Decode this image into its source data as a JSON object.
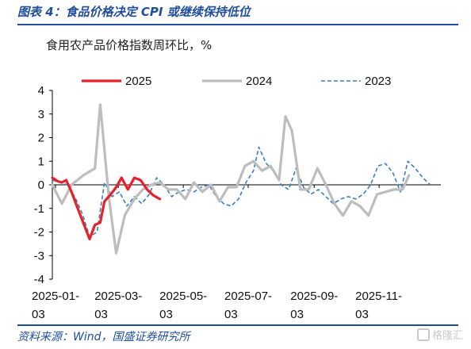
{
  "figure_title": "图表 4：食品价格决定 CPI 或继续保持低位",
  "source": "资料来源：Wind，国盛证券研究所",
  "watermark": "格隆汇",
  "chart_data": {
    "type": "line",
    "title": "食用农产品价格指数周环比，%",
    "xlabel": "",
    "ylabel": "",
    "ylim": [
      -4,
      4
    ],
    "yticks": [
      4,
      3,
      2,
      1,
      0,
      -1,
      -2,
      -3,
      -4
    ],
    "xlim": [
      "2024-12-31",
      "2025-12-31"
    ],
    "xticks": [
      {
        "date": "2025-01-03",
        "label": [
          "2025-01-",
          "03"
        ]
      },
      {
        "date": "2025-03-03",
        "label": [
          "2025-03-",
          "03"
        ]
      },
      {
        "date": "2025-05-03",
        "label": [
          "2025-05-",
          "03"
        ]
      },
      {
        "date": "2025-07-03",
        "label": [
          "2025-07-",
          "03"
        ]
      },
      {
        "date": "2025-09-03",
        "label": [
          "2025-09-",
          "03"
        ]
      },
      {
        "date": "2025-11-03",
        "label": [
          "2025-11-",
          "03"
        ]
      }
    ],
    "legend_position": "top",
    "series": [
      {
        "name": "2025",
        "color": "#e8202a",
        "style": "solid-thick",
        "points": [
          [
            "2024-12-31",
            0.3
          ],
          [
            "2025-01-05",
            0.15
          ],
          [
            "2025-01-09",
            0.1
          ],
          [
            "2025-01-13",
            0.2
          ],
          [
            "2025-01-18",
            -0.3
          ],
          [
            "2025-01-23",
            -0.9
          ],
          [
            "2025-01-29",
            -1.6
          ],
          [
            "2025-02-04",
            -2.3
          ],
          [
            "2025-02-09",
            -1.7
          ],
          [
            "2025-02-14",
            -1.6
          ],
          [
            "2025-02-18",
            -0.7
          ],
          [
            "2025-02-24",
            -0.4
          ],
          [
            "2025-03-01",
            -0.1
          ],
          [
            "2025-03-06",
            0.3
          ],
          [
            "2025-03-12",
            -0.2
          ],
          [
            "2025-03-18",
            0.3
          ],
          [
            "2025-03-24",
            0.2
          ],
          [
            "2025-03-30",
            -0.2
          ],
          [
            "2025-04-05",
            -0.45
          ],
          [
            "2025-04-11",
            -0.6
          ]
        ]
      },
      {
        "name": "2024",
        "color": "#bdbdbd",
        "style": "solid-thick",
        "points": [
          [
            "2024-12-31",
            0.0
          ],
          [
            "2025-01-09",
            -0.8
          ],
          [
            "2025-01-18",
            0.0
          ],
          [
            "2025-01-29",
            0.4
          ],
          [
            "2025-02-09",
            0.7
          ],
          [
            "2025-02-14",
            3.4
          ],
          [
            "2025-02-22",
            -0.5
          ],
          [
            "2025-03-01",
            -2.9
          ],
          [
            "2025-03-09",
            -1.3
          ],
          [
            "2025-03-18",
            -0.6
          ],
          [
            "2025-03-26",
            -0.2
          ],
          [
            "2025-04-03",
            0.0
          ],
          [
            "2025-04-11",
            0.1
          ],
          [
            "2025-04-19",
            -0.2
          ],
          [
            "2025-04-27",
            -0.2
          ],
          [
            "2025-05-05",
            -0.6
          ],
          [
            "2025-05-13",
            0.1
          ],
          [
            "2025-05-21",
            -0.3
          ],
          [
            "2025-05-29",
            0.0
          ],
          [
            "2025-06-06",
            -0.7
          ],
          [
            "2025-06-14",
            -0.1
          ],
          [
            "2025-06-22",
            -0.1
          ],
          [
            "2025-06-30",
            0.8
          ],
          [
            "2025-07-08",
            1.0
          ],
          [
            "2025-07-16",
            0.6
          ],
          [
            "2025-07-24",
            0.8
          ],
          [
            "2025-08-01",
            0.2
          ],
          [
            "2025-08-07",
            2.9
          ],
          [
            "2025-08-13",
            2.3
          ],
          [
            "2025-08-21",
            -0.2
          ],
          [
            "2025-08-29",
            -0.2
          ],
          [
            "2025-09-06",
            0.7
          ],
          [
            "2025-09-14",
            0.0
          ],
          [
            "2025-09-22",
            -0.8
          ],
          [
            "2025-09-30",
            -1.3
          ],
          [
            "2025-10-08",
            -0.7
          ],
          [
            "2025-10-16",
            -0.9
          ],
          [
            "2025-10-24",
            -1.3
          ],
          [
            "2025-11-01",
            -0.4
          ],
          [
            "2025-11-09",
            -0.3
          ],
          [
            "2025-11-17",
            -0.2
          ],
          [
            "2025-11-25",
            -0.2
          ],
          [
            "2025-12-01",
            0.4
          ]
        ]
      },
      {
        "name": "2023",
        "color": "#3a7ec0",
        "style": "dashed",
        "points": [
          [
            "2024-12-31",
            0.2
          ],
          [
            "2025-01-07",
            0.1
          ],
          [
            "2025-01-14",
            0.0
          ],
          [
            "2025-01-21",
            -0.5
          ],
          [
            "2025-01-28",
            -1.2
          ],
          [
            "2025-02-04",
            -2.2
          ],
          [
            "2025-02-11",
            -2.0
          ],
          [
            "2025-02-18",
            0.1
          ],
          [
            "2025-02-25",
            -0.5
          ],
          [
            "2025-03-04",
            -0.3
          ],
          [
            "2025-03-11",
            -0.9
          ],
          [
            "2025-03-18",
            -0.5
          ],
          [
            "2025-03-25",
            -0.8
          ],
          [
            "2025-04-01",
            -0.4
          ],
          [
            "2025-04-08",
            0.3
          ],
          [
            "2025-04-15",
            0.0
          ],
          [
            "2025-04-22",
            -0.5
          ],
          [
            "2025-04-29",
            -0.3
          ],
          [
            "2025-05-06",
            -0.2
          ],
          [
            "2025-05-13",
            -0.3
          ],
          [
            "2025-05-20",
            -0.1
          ],
          [
            "2025-05-27",
            0.0
          ],
          [
            "2025-06-03",
            -0.5
          ],
          [
            "2025-06-10",
            -0.8
          ],
          [
            "2025-06-17",
            -0.9
          ],
          [
            "2025-06-24",
            -0.6
          ],
          [
            "2025-07-01",
            0.1
          ],
          [
            "2025-07-08",
            0.6
          ],
          [
            "2025-07-13",
            1.6
          ],
          [
            "2025-07-20",
            0.9
          ],
          [
            "2025-07-27",
            0.6
          ],
          [
            "2025-08-03",
            0.0
          ],
          [
            "2025-08-10",
            -0.2
          ],
          [
            "2025-08-17",
            0.7
          ],
          [
            "2025-08-24",
            -0.1
          ],
          [
            "2025-08-31",
            -0.4
          ],
          [
            "2025-09-07",
            -0.2
          ],
          [
            "2025-09-14",
            -0.5
          ],
          [
            "2025-09-21",
            -0.8
          ],
          [
            "2025-09-28",
            -0.6
          ],
          [
            "2025-10-05",
            -0.5
          ],
          [
            "2025-10-12",
            -0.6
          ],
          [
            "2025-10-19",
            -0.4
          ],
          [
            "2025-10-26",
            0.0
          ],
          [
            "2025-11-02",
            0.8
          ],
          [
            "2025-11-09",
            0.9
          ],
          [
            "2025-11-16",
            0.5
          ],
          [
            "2025-11-23",
            -0.3
          ],
          [
            "2025-11-30",
            1.0
          ],
          [
            "2025-12-07",
            0.7
          ],
          [
            "2025-12-14",
            0.3
          ],
          [
            "2025-12-21",
            0.0
          ]
        ]
      }
    ]
  }
}
